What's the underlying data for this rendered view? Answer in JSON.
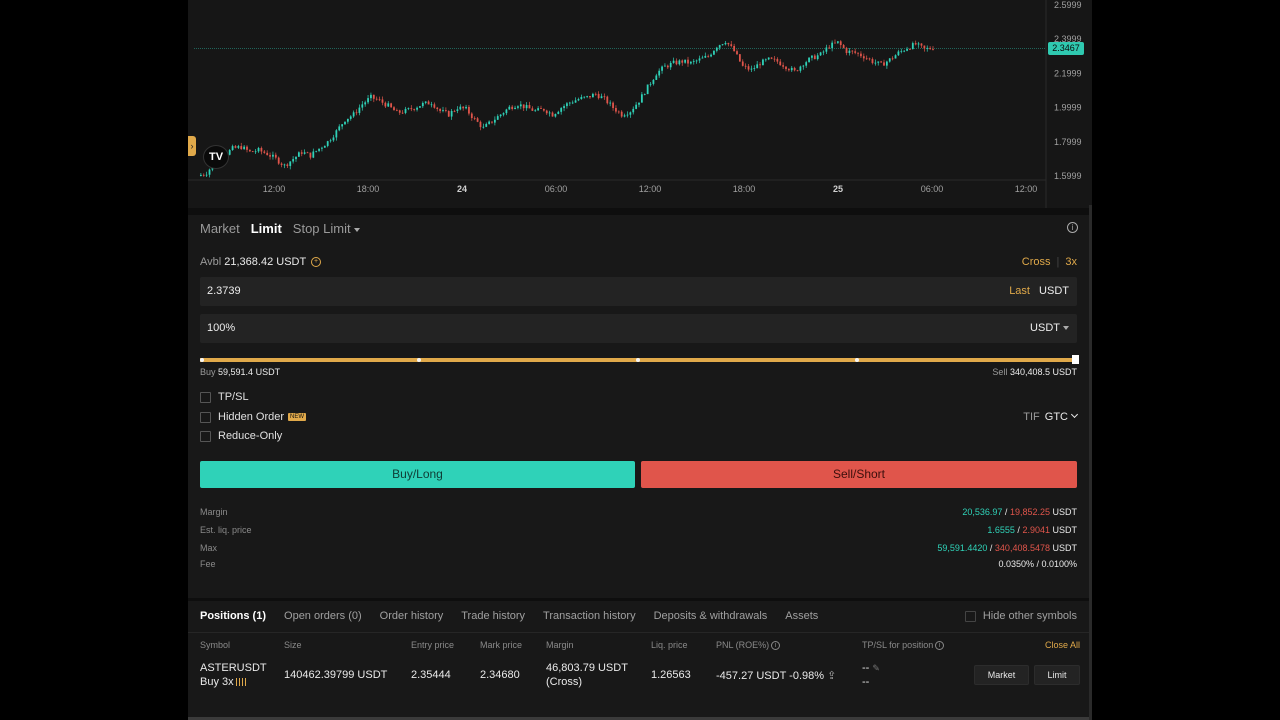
{
  "chart": {
    "price_axis": [
      "2.5999",
      "2.3999",
      "2.1999",
      "1.9999",
      "1.7999",
      "1.5999"
    ],
    "time_axis": [
      "12:00",
      "18:00",
      "24",
      "06:00",
      "12:00",
      "18:00",
      "25",
      "06:00",
      "12:00"
    ],
    "time_axis_bold": [
      false,
      false,
      true,
      false,
      false,
      false,
      true,
      false,
      false
    ],
    "current_price_tag": "2.3467",
    "logo": "TV",
    "collapse_handle_icon": "chevron-right-icon",
    "colors": {
      "up": "#2fd2b8",
      "down": "#e0554b"
    }
  },
  "chart_data": {
    "type": "candlestick",
    "ylim": [
      1.5999,
      2.5999
    ],
    "current_price": 2.3467,
    "close_series": [
      1.6,
      1.62,
      1.68,
      1.72,
      1.76,
      1.77,
      1.74,
      1.75,
      1.73,
      1.7,
      1.66,
      1.7,
      1.74,
      1.72,
      1.76,
      1.8,
      1.86,
      1.93,
      1.96,
      2.02,
      2.06,
      2.04,
      2.01,
      1.97,
      1.98,
      2.0,
      2.02,
      2.03,
      1.98,
      1.96,
      2.0,
      1.99,
      1.93,
      1.88,
      1.92,
      1.96,
      2.0,
      2.02,
      2.0,
      1.98,
      1.99,
      1.96,
      2.0,
      2.03,
      2.05,
      2.06,
      2.08,
      2.05,
      2.0,
      1.96,
      1.98,
      2.04,
      2.12,
      2.2,
      2.24,
      2.26,
      2.27,
      2.26,
      2.28,
      2.3,
      2.36,
      2.39,
      2.33,
      2.24,
      2.22,
      2.26,
      2.28,
      2.27,
      2.24,
      2.21,
      2.26,
      2.29,
      2.31,
      2.36,
      2.38,
      2.33,
      2.32,
      2.3,
      2.27,
      2.25,
      2.28,
      2.32,
      2.35,
      2.37,
      2.34,
      2.35
    ]
  },
  "order": {
    "tabs": [
      "Market",
      "Limit",
      "Stop Limit"
    ],
    "active_tab": 1,
    "info_icon": "info-icon",
    "avbl_label": "Avbl",
    "avbl_value": "21,368.42 USDT",
    "margin_mode": "Cross",
    "leverage": "3x",
    "price_value": "2.3739",
    "price_type": "Last",
    "price_unit": "USDT",
    "size_value": "100%",
    "size_unit": "USDT",
    "slider_percent": 100,
    "buy_label": "Buy",
    "buy_amount": "59,591.4 USDT",
    "sell_label": "Sell",
    "sell_amount": "340,408.5 USDT",
    "tpsl": "TP/SL",
    "hidden_order": "Hidden Order",
    "new_badge": "NEW",
    "reduce_only": "Reduce-Only",
    "tif_label": "TIF",
    "tif_value": "GTC",
    "buy_button": "Buy/Long",
    "sell_button": "Sell/Short",
    "margin_label": "Margin",
    "margin_buy": "20,536.97",
    "margin_sell": "19,852.25",
    "liq_label": "Est. liq. price",
    "liq_buy": "1.6555",
    "liq_sell": "2.9041",
    "max_label": "Max",
    "max_buy": "59,591.4420",
    "max_sell": "340,408.5478",
    "fee_label": "Fee",
    "fee_value": "0.0350% / 0.0100%",
    "unit": "USDT",
    "slash": "/"
  },
  "positions": {
    "tabs": [
      "Positions (1)",
      "Open orders (0)",
      "Order history",
      "Trade history",
      "Transaction history",
      "Deposits & withdrawals",
      "Assets"
    ],
    "hide_other": "Hide other symbols",
    "headers": {
      "symbol": "Symbol",
      "size": "Size",
      "entry": "Entry price",
      "mark": "Mark price",
      "margin": "Margin",
      "liq": "Liq. price",
      "pnl": "PNL (ROE%)",
      "tpsl": "TP/SL for position",
      "close_all": "Close All"
    },
    "row": {
      "symbol": "ASTERUSDT",
      "side": "Buy 3x",
      "size": "140462.39799 USDT",
      "entry": "2.35444",
      "mark": "2.34680",
      "margin": "46,803.79 USDT",
      "margin_mode": "(Cross)",
      "liq": "1.26563",
      "pnl": "-457.27 USDT -0.98%",
      "tp": "--",
      "sl": "--",
      "market_btn": "Market",
      "limit_btn": "Limit"
    }
  }
}
